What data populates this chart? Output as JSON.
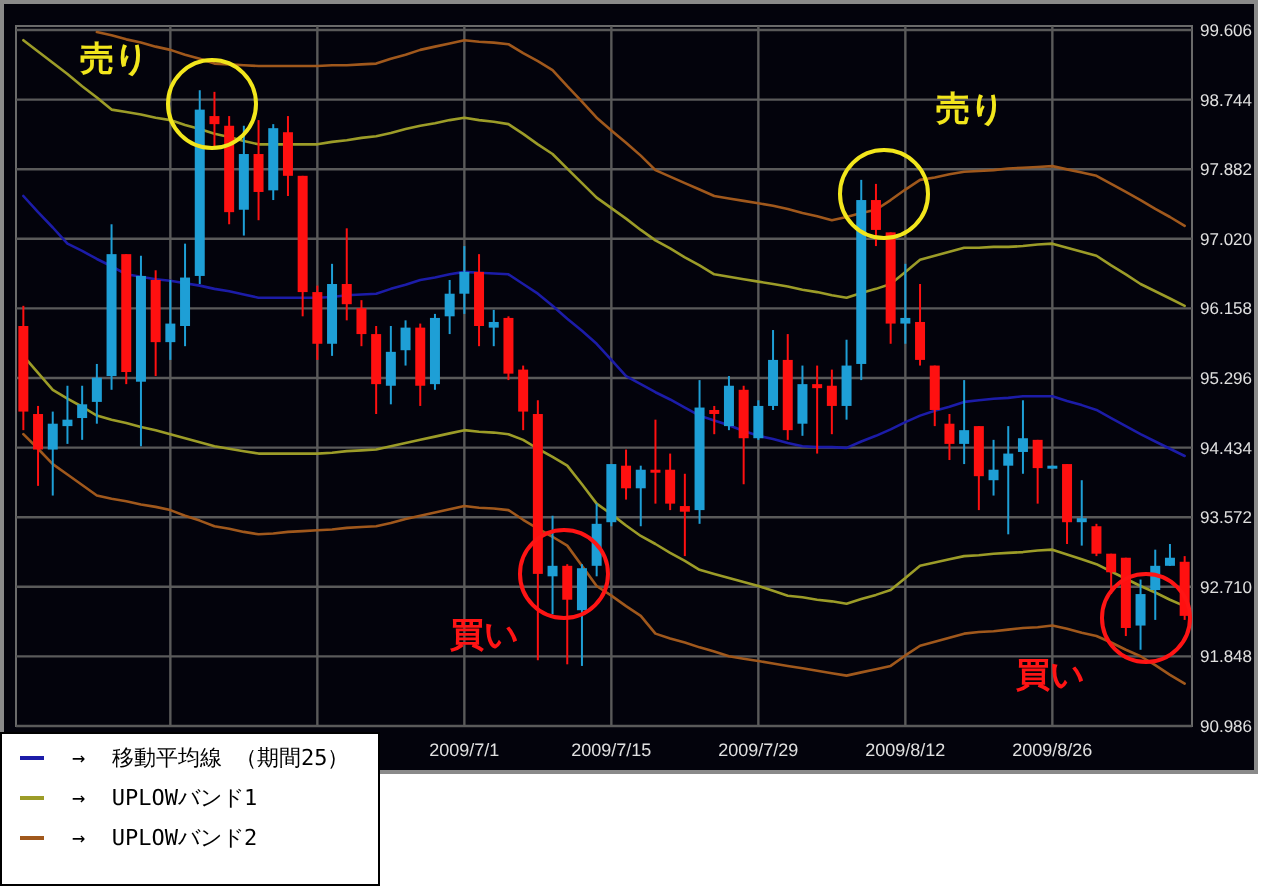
{
  "chart_data": {
    "type": "candlestick",
    "categories": [
      null,
      null,
      null,
      null,
      null,
      null,
      null,
      null,
      null,
      null,
      null,
      null,
      null,
      null,
      null,
      null,
      null,
      null,
      null,
      null,
      null,
      null,
      null,
      null,
      null,
      null,
      null,
      null,
      null,
      null,
      "2009/7/1",
      null,
      null,
      null,
      null,
      null,
      null,
      null,
      null,
      null,
      "2009/7/15",
      null,
      null,
      null,
      null,
      null,
      null,
      null,
      null,
      null,
      "2009/7/29",
      null,
      null,
      null,
      null,
      null,
      null,
      null,
      null,
      null,
      "2009/8/12",
      null,
      null,
      null,
      null,
      null,
      null,
      null,
      null,
      null,
      "2009/8/26",
      null,
      null,
      null,
      null,
      null,
      null,
      null,
      null,
      null
    ],
    "ohlc": [
      [
        95.94,
        96.19,
        94.65,
        94.88
      ],
      [
        94.85,
        94.95,
        93.96,
        94.41
      ],
      [
        94.41,
        94.88,
        93.84,
        94.73
      ],
      [
        94.7,
        95.2,
        94.48,
        94.78
      ],
      [
        94.8,
        95.2,
        94.53,
        94.97
      ],
      [
        95.0,
        95.47,
        94.73,
        95.3
      ],
      [
        95.32,
        97.2,
        95.15,
        96.83
      ],
      [
        96.83,
        96.83,
        95.22,
        95.37
      ],
      [
        95.25,
        96.81,
        94.45,
        96.56
      ],
      [
        96.51,
        96.63,
        95.32,
        95.74
      ],
      [
        95.74,
        96.51,
        95.52,
        95.97
      ],
      [
        95.94,
        96.96,
        95.69,
        96.54
      ],
      [
        96.56,
        98.86,
        96.46,
        98.62
      ],
      [
        98.54,
        98.84,
        98.17,
        98.44
      ],
      [
        98.42,
        98.54,
        97.2,
        97.35
      ],
      [
        97.38,
        98.42,
        97.06,
        98.07
      ],
      [
        98.07,
        98.49,
        97.25,
        97.6
      ],
      [
        97.62,
        98.44,
        97.5,
        98.39
      ],
      [
        98.34,
        98.54,
        97.55,
        97.8
      ],
      [
        97.8,
        97.8,
        96.06,
        96.36
      ],
      [
        96.36,
        96.44,
        95.52,
        95.72
      ],
      [
        95.72,
        96.71,
        95.57,
        96.46
      ],
      [
        96.46,
        97.15,
        96.01,
        96.21
      ],
      [
        96.16,
        96.26,
        95.69,
        95.84
      ],
      [
        95.84,
        95.94,
        94.85,
        95.22
      ],
      [
        95.2,
        95.94,
        94.97,
        95.62
      ],
      [
        95.64,
        96.01,
        95.45,
        95.92
      ],
      [
        95.92,
        95.97,
        94.95,
        95.2
      ],
      [
        95.22,
        96.09,
        95.15,
        96.04
      ],
      [
        96.06,
        96.51,
        95.84,
        96.34
      ],
      [
        96.34,
        96.93,
        96.09,
        96.61
      ],
      [
        96.61,
        96.83,
        95.69,
        95.94
      ],
      [
        95.92,
        96.14,
        95.69,
        95.99
      ],
      [
        96.04,
        96.06,
        95.27,
        95.35
      ],
      [
        95.4,
        95.45,
        94.65,
        94.88
      ],
      [
        94.85,
        95.02,
        91.8,
        92.87
      ],
      [
        92.84,
        93.59,
        92.37,
        92.97
      ],
      [
        92.97,
        92.99,
        91.75,
        92.55
      ],
      [
        92.42,
        92.99,
        91.73,
        92.94
      ],
      [
        92.97,
        93.74,
        92.84,
        93.49
      ],
      [
        93.51,
        94.23,
        93.46,
        94.23
      ],
      [
        94.21,
        94.41,
        93.79,
        93.93
      ],
      [
        93.93,
        94.21,
        93.46,
        94.16
      ],
      [
        94.16,
        94.78,
        93.74,
        94.13
      ],
      [
        94.16,
        94.36,
        93.66,
        93.74
      ],
      [
        93.71,
        94.11,
        93.09,
        93.64
      ],
      [
        93.66,
        95.27,
        93.49,
        94.93
      ],
      [
        94.9,
        94.95,
        94.6,
        94.85
      ],
      [
        94.7,
        95.32,
        94.65,
        95.2
      ],
      [
        95.15,
        95.2,
        93.98,
        94.55
      ],
      [
        94.55,
        95.02,
        94.53,
        94.95
      ],
      [
        94.95,
        95.89,
        94.9,
        95.52
      ],
      [
        95.52,
        95.84,
        94.53,
        94.65
      ],
      [
        94.73,
        95.45,
        94.58,
        95.22
      ],
      [
        95.22,
        95.45,
        94.36,
        95.17
      ],
      [
        95.2,
        95.4,
        94.6,
        94.95
      ],
      [
        94.95,
        95.77,
        94.78,
        95.45
      ],
      [
        95.47,
        97.75,
        95.27,
        97.5
      ],
      [
        97.5,
        97.7,
        96.93,
        97.13
      ],
      [
        97.1,
        97.1,
        95.72,
        95.97
      ],
      [
        95.97,
        96.71,
        95.72,
        96.04
      ],
      [
        95.99,
        96.46,
        95.45,
        95.52
      ],
      [
        95.45,
        95.45,
        94.7,
        94.9
      ],
      [
        94.73,
        94.85,
        94.28,
        94.48
      ],
      [
        94.48,
        95.27,
        94.23,
        94.65
      ],
      [
        94.7,
        94.7,
        93.66,
        94.08
      ],
      [
        94.03,
        94.53,
        93.84,
        94.16
      ],
      [
        94.21,
        94.7,
        93.36,
        94.36
      ],
      [
        94.38,
        95.02,
        94.11,
        94.55
      ],
      [
        94.53,
        94.53,
        93.74,
        94.18
      ],
      [
        94.18,
        94.21,
        94.18,
        94.21
      ],
      [
        94.23,
        94.23,
        93.24,
        93.51
      ],
      [
        93.51,
        94.03,
        93.22,
        93.56
      ],
      [
        93.46,
        93.49,
        93.09,
        93.12
      ],
      [
        93.12,
        93.12,
        92.62,
        92.89
      ],
      [
        93.07,
        93.07,
        92.1,
        92.2
      ],
      [
        92.23,
        92.8,
        91.93,
        92.62
      ],
      [
        92.67,
        93.17,
        92.3,
        92.97
      ],
      [
        92.97,
        93.24,
        92.97,
        93.07
      ],
      [
        93.02,
        93.09,
        92.3,
        92.35
      ]
    ],
    "series": [
      {
        "type": "line",
        "name": "→  移動平均線 （期間25）",
        "color": "#1c1ca8",
        "values": [
          97.55,
          97.35,
          97.16,
          96.96,
          96.87,
          96.77,
          96.68,
          96.58,
          96.55,
          96.52,
          96.5,
          96.47,
          96.44,
          96.4,
          96.37,
          96.33,
          96.29,
          96.29,
          96.29,
          96.29,
          96.29,
          96.3,
          96.32,
          96.33,
          96.34,
          96.4,
          96.45,
          96.51,
          96.54,
          96.58,
          96.61,
          96.6,
          96.59,
          96.58,
          96.46,
          96.34,
          96.19,
          96.03,
          95.88,
          95.72,
          95.52,
          95.32,
          95.22,
          95.12,
          95.03,
          94.93,
          94.83,
          94.77,
          94.71,
          94.64,
          94.58,
          94.54,
          94.49,
          94.45,
          94.44,
          94.44,
          94.43,
          94.51,
          94.58,
          94.66,
          94.75,
          94.83,
          94.89,
          94.94,
          95.0,
          95.02,
          95.04,
          95.05,
          95.07,
          95.07,
          95.07,
          95.01,
          94.96,
          94.9,
          94.8,
          94.7,
          94.6,
          94.51,
          94.42,
          94.33
        ]
      },
      {
        "type": "line",
        "name": "→  UPLOWバンド1",
        "color": "#9c9c28",
        "values": [
          99.48,
          99.34,
          99.2,
          99.06,
          98.91,
          98.77,
          98.62,
          98.59,
          98.56,
          98.52,
          98.49,
          98.43,
          98.38,
          98.32,
          98.28,
          98.23,
          98.19,
          98.19,
          98.19,
          98.19,
          98.19,
          98.22,
          98.24,
          98.27,
          98.29,
          98.33,
          98.38,
          98.42,
          98.45,
          98.49,
          98.52,
          98.49,
          98.47,
          98.44,
          98.32,
          98.19,
          98.07,
          97.89,
          97.71,
          97.53,
          97.4,
          97.27,
          97.13,
          97.0,
          96.9,
          96.79,
          96.69,
          96.58,
          96.55,
          96.52,
          96.49,
          96.46,
          96.43,
          96.39,
          96.36,
          96.32,
          96.29,
          96.35,
          96.4,
          96.46,
          96.61,
          96.76,
          96.81,
          96.86,
          96.91,
          96.91,
          96.92,
          96.92,
          96.93,
          96.95,
          96.96,
          96.91,
          96.86,
          96.81,
          96.69,
          96.58,
          96.46,
          96.37,
          96.28,
          96.19
        ]
      },
      {
        "type": "line",
        "color": "#9c9c28",
        "values": [
          95.57,
          95.36,
          95.15,
          95.04,
          94.94,
          94.83,
          94.78,
          94.74,
          94.69,
          94.65,
          94.6,
          94.55,
          94.5,
          94.45,
          94.42,
          94.39,
          94.36,
          94.36,
          94.36,
          94.36,
          94.36,
          94.37,
          94.39,
          94.4,
          94.41,
          94.45,
          94.49,
          94.53,
          94.57,
          94.61,
          94.65,
          94.63,
          94.62,
          94.6,
          94.53,
          94.42,
          94.32,
          94.21,
          93.98,
          93.74,
          93.61,
          93.47,
          93.34,
          93.24,
          93.13,
          93.03,
          92.92,
          92.87,
          92.82,
          92.77,
          92.72,
          92.66,
          92.6,
          92.58,
          92.55,
          92.53,
          92.5,
          92.56,
          92.61,
          92.67,
          92.82,
          92.97,
          93.01,
          93.05,
          93.09,
          93.1,
          93.12,
          93.13,
          93.14,
          93.16,
          93.17,
          93.11,
          93.05,
          92.99,
          92.9,
          92.81,
          92.72,
          92.64,
          92.55,
          92.47
        ]
      },
      {
        "type": "line",
        "name": "→  UPLOWバンド2",
        "color": "#a0581c",
        "values": [
          null,
          null,
          null,
          null,
          null,
          99.58,
          99.54,
          99.49,
          99.45,
          99.4,
          99.36,
          99.3,
          99.25,
          99.19,
          99.18,
          99.17,
          99.16,
          99.16,
          99.16,
          99.16,
          99.16,
          99.17,
          99.17,
          99.18,
          99.19,
          99.25,
          99.3,
          99.36,
          99.4,
          99.44,
          99.48,
          99.46,
          99.45,
          99.43,
          99.32,
          99.22,
          99.11,
          98.91,
          98.72,
          98.52,
          98.36,
          98.21,
          98.05,
          97.87,
          97.79,
          97.71,
          97.63,
          97.55,
          97.52,
          97.49,
          97.46,
          97.43,
          97.39,
          97.34,
          97.3,
          97.25,
          97.29,
          97.34,
          97.38,
          97.5,
          97.63,
          97.75,
          97.78,
          97.82,
          97.85,
          97.86,
          97.87,
          97.89,
          97.9,
          97.91,
          97.92,
          97.88,
          97.84,
          97.8,
          97.7,
          97.6,
          97.5,
          97.39,
          97.29,
          97.18
        ]
      },
      {
        "type": "line",
        "color": "#a0581c",
        "values": [
          94.6,
          94.42,
          94.23,
          94.1,
          93.97,
          93.84,
          93.8,
          93.77,
          93.73,
          93.7,
          93.66,
          93.59,
          93.53,
          93.46,
          93.43,
          93.39,
          93.36,
          93.37,
          93.39,
          93.4,
          93.41,
          93.42,
          93.44,
          93.45,
          93.46,
          93.5,
          93.55,
          93.59,
          93.63,
          93.67,
          93.71,
          93.69,
          93.68,
          93.66,
          93.54,
          93.43,
          93.33,
          93.22,
          92.97,
          92.72,
          92.6,
          92.47,
          92.35,
          92.13,
          92.07,
          92.02,
          91.96,
          91.91,
          91.85,
          91.82,
          91.79,
          91.76,
          91.73,
          91.7,
          91.67,
          91.64,
          91.61,
          91.65,
          91.69,
          91.73,
          91.86,
          91.98,
          92.03,
          92.08,
          92.13,
          92.15,
          92.16,
          92.18,
          92.2,
          92.21,
          92.23,
          92.19,
          92.14,
          92.1,
          92.02,
          91.93,
          91.85,
          91.74,
          91.62,
          91.51
        ]
      }
    ],
    "ylim": [
      90.986,
      99.606
    ],
    "yticks": [
      99.606,
      98.744,
      97.882,
      {
        "value": 97.02,
        "label": "97.020"
      },
      96.158,
      95.296,
      94.434,
      93.572,
      {
        "value": 92.71,
        "label": "92.710"
      },
      91.848,
      90.986
    ],
    "grid": true,
    "legend": "bottom left",
    "annotations": [
      "売り",
      "売り",
      "買い",
      "買い"
    ]
  }
}
